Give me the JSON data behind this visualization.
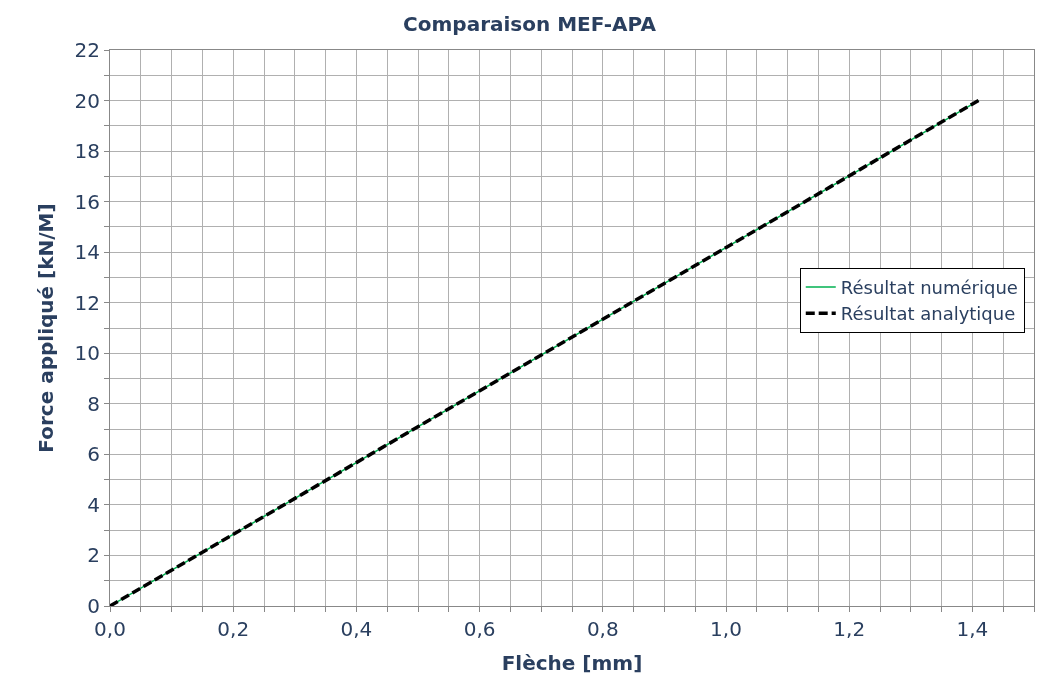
{
  "chart_data": {
    "type": "line",
    "title": "Comparaison MEF-APA",
    "xlabel": "Flèche [mm]",
    "ylabel": "Force appliqué [kN/M]",
    "x": [
      0,
      1.41
    ],
    "series": [
      {
        "name": "Résultat numérique",
        "color": "#00b050",
        "values": [
          0,
          20
        ],
        "line_style": "solid"
      },
      {
        "name": "Résultat analytique",
        "color": "#000000",
        "values": [
          0,
          20
        ],
        "line_style": "dashed"
      }
    ],
    "xlim": [
      0,
      1.5
    ],
    "xticks": [
      {
        "value": 0,
        "label": "0,0"
      },
      {
        "value": 0.05,
        "label": null
      },
      {
        "value": 0.1,
        "label": null
      },
      {
        "value": 0.15,
        "label": null
      },
      {
        "value": 0.2,
        "label": "0,2"
      },
      {
        "value": 0.25,
        "label": null
      },
      {
        "value": 0.3,
        "label": null
      },
      {
        "value": 0.35,
        "label": null
      },
      {
        "value": 0.4,
        "label": "0,4"
      },
      {
        "value": 0.45,
        "label": null
      },
      {
        "value": 0.5,
        "label": null
      },
      {
        "value": 0.55,
        "label": null
      },
      {
        "value": 0.6,
        "label": "0,6"
      },
      {
        "value": 0.65,
        "label": null
      },
      {
        "value": 0.7,
        "label": null
      },
      {
        "value": 0.75,
        "label": null
      },
      {
        "value": 0.8,
        "label": "0,8"
      },
      {
        "value": 0.85,
        "label": null
      },
      {
        "value": 0.9,
        "label": null
      },
      {
        "value": 0.95,
        "label": null
      },
      {
        "value": 1.0,
        "label": "1,0"
      },
      {
        "value": 1.05,
        "label": null
      },
      {
        "value": 1.1,
        "label": null
      },
      {
        "value": 1.15,
        "label": null
      },
      {
        "value": 1.2,
        "label": "1,2"
      },
      {
        "value": 1.25,
        "label": null
      },
      {
        "value": 1.3,
        "label": null
      },
      {
        "value": 1.35,
        "label": null
      },
      {
        "value": 1.4,
        "label": "1,4"
      },
      {
        "value": 1.45,
        "label": null
      },
      {
        "value": 1.5,
        "label": null
      }
    ],
    "ylim": [
      0,
      22
    ],
    "yticks": [
      0,
      {
        "value": 1,
        "label": null
      },
      2,
      {
        "value": 3,
        "label": null
      },
      4,
      {
        "value": 5,
        "label": null
      },
      6,
      {
        "value": 7,
        "label": null
      },
      8,
      {
        "value": 9,
        "label": null
      },
      10,
      {
        "value": 11,
        "label": null
      },
      12,
      {
        "value": 13,
        "label": null
      },
      14,
      {
        "value": 15,
        "label": null
      },
      16,
      {
        "value": 17,
        "label": null
      },
      18,
      {
        "value": 19,
        "label": null
      },
      20,
      {
        "value": 21,
        "label": null
      },
      22
    ],
    "grid": true,
    "legend": "right",
    "marker": "none"
  }
}
